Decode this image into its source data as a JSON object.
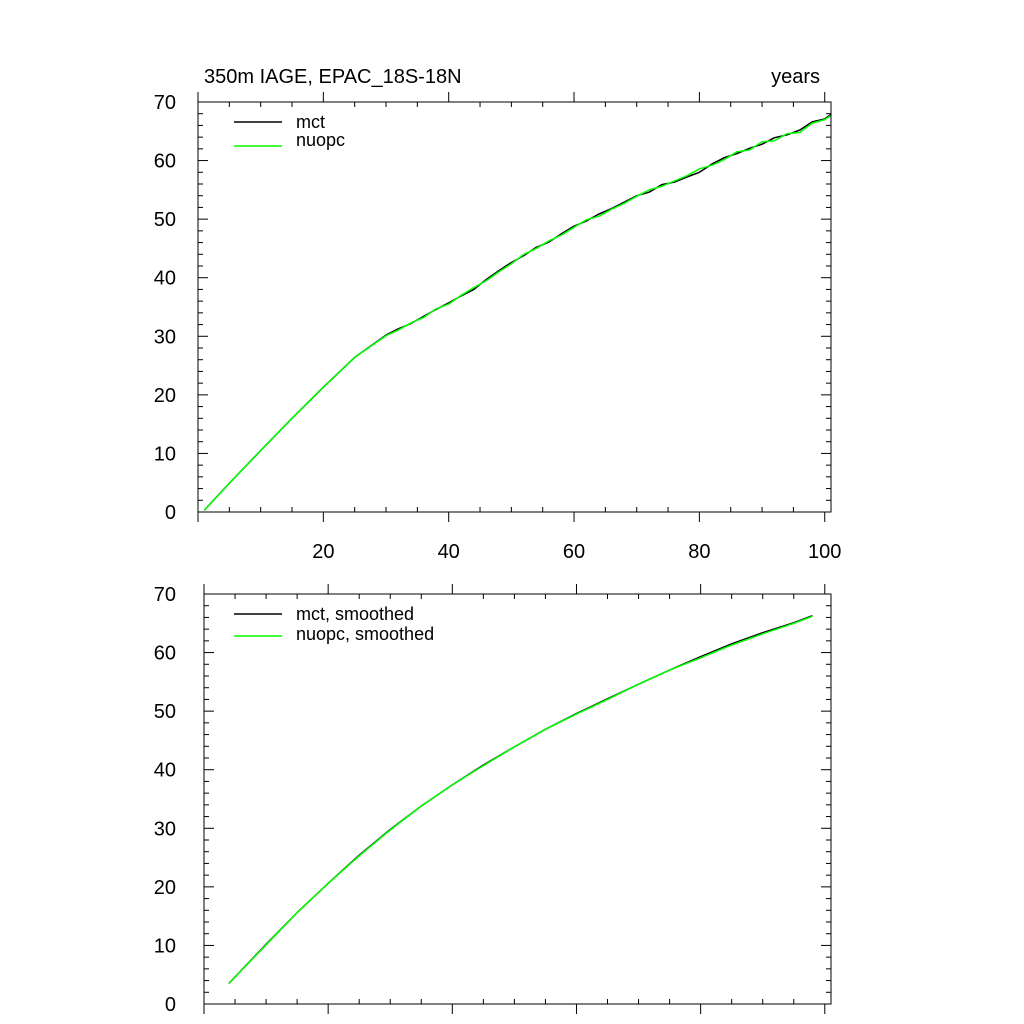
{
  "colors": {
    "mct": "#000000",
    "nuopc": "#00ff00",
    "axis": "#000000",
    "background": "#ffffff"
  },
  "chart_data": [
    {
      "type": "line",
      "title_left": "350m IAGE, EPAC_18S-18N",
      "title_right": "years",
      "xlim": [
        0,
        101
      ],
      "ylim": [
        0,
        70
      ],
      "x_major_ticks": [
        20,
        40,
        60,
        80,
        100
      ],
      "x_tick_labels": [
        "20",
        "40",
        "60",
        "80",
        "100"
      ],
      "y_major_ticks": [
        0,
        10,
        20,
        30,
        40,
        50,
        60,
        70
      ],
      "y_tick_labels": [
        "0",
        "10",
        "20",
        "30",
        "40",
        "50",
        "60",
        "70"
      ],
      "legend_position": "top-left",
      "series": [
        {
          "name": "mct",
          "color": "#000000",
          "x": [
            1,
            5,
            10,
            15,
            20,
            25,
            30,
            32,
            34,
            36,
            38,
            40,
            42,
            44,
            46,
            48,
            50,
            52,
            54,
            56,
            58,
            60,
            62,
            64,
            66,
            68,
            70,
            72,
            74,
            76,
            78,
            80,
            82,
            84,
            86,
            88,
            90,
            92,
            94,
            96,
            98,
            100,
            101
          ],
          "y": [
            0.3,
            4.9,
            10.5,
            16.0,
            21.3,
            26.4,
            30.2,
            31.3,
            32.2,
            33.4,
            34.6,
            35.7,
            36.9,
            38.0,
            39.7,
            41.2,
            42.6,
            43.8,
            45.2,
            46.1,
            47.5,
            48.8,
            49.7,
            50.9,
            51.8,
            52.9,
            54.0,
            54.6,
            55.9,
            56.3,
            57.2,
            58.0,
            59.4,
            60.5,
            61.2,
            62.1,
            62.8,
            63.9,
            64.4,
            65.2,
            66.6,
            67.1,
            67.9
          ]
        },
        {
          "name": "nuopc",
          "color": "#00ff00",
          "x": [
            1,
            5,
            10,
            15,
            20,
            25,
            30,
            32,
            34,
            36,
            38,
            40,
            42,
            44,
            46,
            48,
            50,
            52,
            54,
            56,
            58,
            60,
            62,
            64,
            66,
            68,
            70,
            72,
            74,
            76,
            78,
            80,
            82,
            84,
            86,
            88,
            90,
            92,
            94,
            96,
            98,
            100,
            101
          ],
          "y": [
            0.3,
            4.9,
            10.5,
            16.0,
            21.3,
            26.4,
            30.1,
            31.1,
            32.3,
            33.2,
            34.7,
            35.5,
            37.0,
            38.3,
            39.5,
            41.0,
            42.4,
            44.0,
            45.0,
            46.3,
            47.3,
            48.6,
            49.9,
            50.5,
            51.7,
            52.7,
            53.9,
            55.0,
            55.6,
            56.5,
            57.4,
            58.6,
            59.2,
            60.2,
            61.5,
            61.8,
            63.2,
            63.4,
            64.6,
            64.8,
            66.4,
            67.0,
            67.7
          ]
        }
      ]
    },
    {
      "type": "line",
      "xlim": [
        0,
        101
      ],
      "ylim": [
        0,
        70
      ],
      "x_major_ticks": [
        20,
        40,
        60,
        80,
        100
      ],
      "y_major_ticks": [
        0,
        10,
        20,
        30,
        40,
        50,
        60,
        70
      ],
      "y_tick_labels": [
        "0",
        "10",
        "20",
        "30",
        "40",
        "50",
        "60",
        "70"
      ],
      "legend_position": "top-left",
      "series": [
        {
          "name": "mct, smoothed",
          "color": "#000000",
          "x": [
            4,
            10,
            15,
            20,
            25,
            30,
            35,
            40,
            45,
            50,
            55,
            60,
            65,
            70,
            75,
            80,
            85,
            90,
            95,
            98
          ],
          "y": [
            3.5,
            10.2,
            15.6,
            20.6,
            25.4,
            29.8,
            33.8,
            37.4,
            40.8,
            43.9,
            46.9,
            49.6,
            52.1,
            54.6,
            57.0,
            59.3,
            61.5,
            63.4,
            65.1,
            66.3
          ]
        },
        {
          "name": "nuopc, smoothed",
          "color": "#00ff00",
          "x": [
            4,
            10,
            15,
            20,
            25,
            30,
            35,
            40,
            45,
            50,
            55,
            60,
            65,
            70,
            75,
            80,
            85,
            90,
            95,
            98
          ],
          "y": [
            3.5,
            10.1,
            15.6,
            20.6,
            25.3,
            29.7,
            33.8,
            37.4,
            40.7,
            43.9,
            46.9,
            49.5,
            52.0,
            54.6,
            57.0,
            59.1,
            61.3,
            63.2,
            65.0,
            66.2
          ]
        }
      ]
    }
  ]
}
